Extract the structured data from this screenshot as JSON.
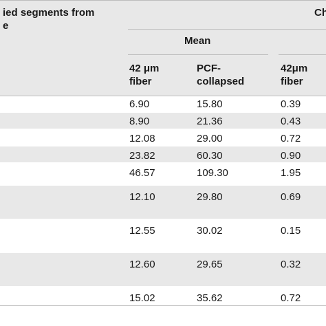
{
  "header": {
    "stub_title_line1": "ied segments from",
    "stub_title_line2": "e",
    "group_title": "Ch",
    "subgroup_title": "Mean",
    "columns": [
      {
        "line1": "42 μm",
        "line2": "fiber"
      },
      {
        "line1": "PCF-",
        "line2": "collapsed"
      },
      {
        "line1": "42μm",
        "line2": "fiber"
      }
    ]
  },
  "rows": [
    [
      "6.90",
      "15.80",
      "0.39"
    ],
    [
      "8.90",
      "21.36",
      "0.43"
    ],
    [
      "12.08",
      "29.00",
      "0.72"
    ],
    [
      "23.82",
      "60.30",
      "0.90"
    ],
    [
      "46.57",
      "109.30",
      "1.95"
    ],
    [
      "12.10",
      "29.80",
      "0.69"
    ],
    [
      "12.55",
      "30.02",
      "0.15"
    ],
    [
      "12.60",
      "29.65",
      "0.32"
    ],
    [
      "15.02",
      "35.62",
      "0.72"
    ]
  ],
  "colors": {
    "band": "#e8e8e8",
    "rule": "#bdbdbd",
    "text": "#1a1a1a"
  }
}
